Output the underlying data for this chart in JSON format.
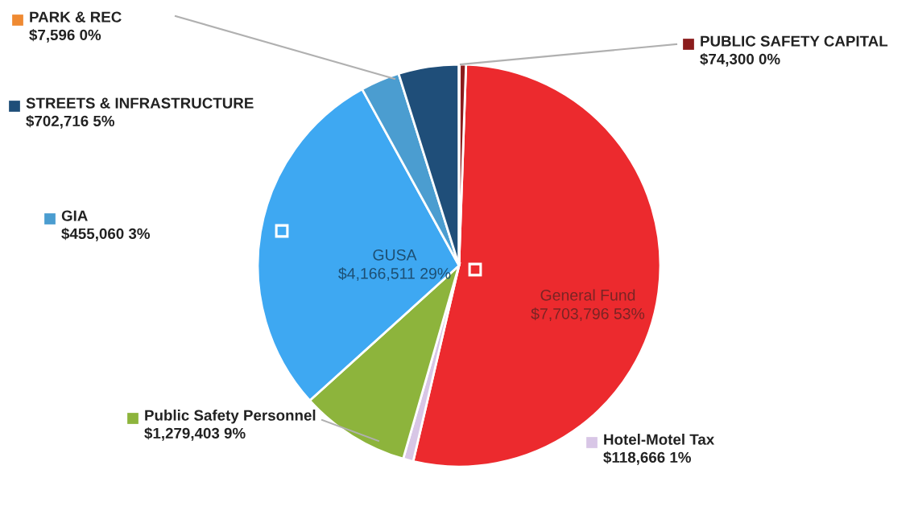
{
  "chart_data": {
    "type": "pie",
    "categories": [
      "General Fund",
      "Hotel-Motel Tax",
      "Public Safety Personnel",
      "GUSA",
      "GIA",
      "STREETS & INFRASTRUCTURE",
      "PARK & REC",
      "PUBLIC SAFETY CAPITAL"
    ],
    "values": [
      7703796,
      118666,
      1279403,
      4166511,
      455060,
      702716,
      7596,
      74300
    ],
    "colors": [
      "#ec2a2e",
      "#d8c6e6",
      "#8db43c",
      "#3ea8f2",
      "#4b9dd0",
      "#1f4e79",
      "#ef8a32",
      "#8b1c1c"
    ],
    "legend": "left",
    "value_labels": [
      "$7,703,796 53%",
      "$118,666 1%",
      "$1,279,403 9%",
      "$4,166,511 29%",
      "$455,060 3%",
      "$702,716 5%",
      "$7,596 0%",
      "$74,300 0%"
    ]
  }
}
